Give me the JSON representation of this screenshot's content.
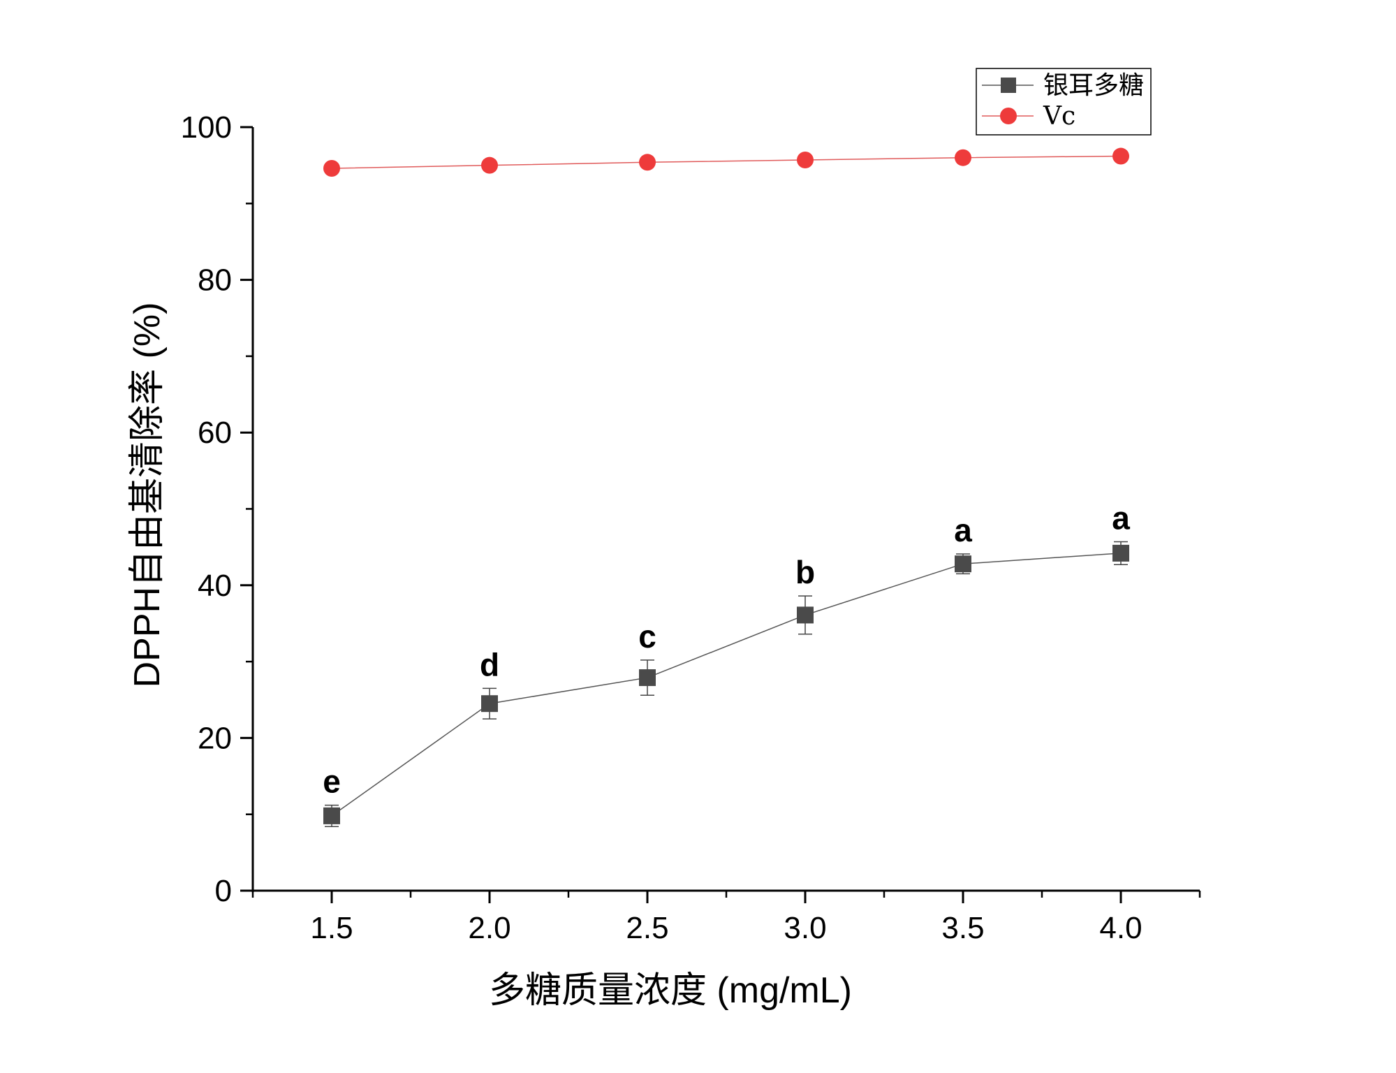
{
  "chart_data": {
    "type": "line",
    "xlabel": "多糖质量浓度 (mg/mL)",
    "ylabel": "DPPH自由基清除率 (%)",
    "xlim": [
      1.25,
      4.25
    ],
    "ylim": [
      0,
      100
    ],
    "x_ticks": [
      "1.5",
      "2.0",
      "2.5",
      "3.0",
      "3.5",
      "4.0"
    ],
    "y_ticks": [
      "0",
      "20",
      "40",
      "60",
      "80",
      "100"
    ],
    "grid": false,
    "legend_position": "top-right",
    "x": [
      1.5,
      2.0,
      2.5,
      3.0,
      3.5,
      4.0
    ],
    "series": [
      {
        "name": "银耳多糖",
        "marker": "square",
        "color": "#4a4a4a",
        "line_color": "#555555",
        "values": [
          9.8,
          24.5,
          27.9,
          36.1,
          42.8,
          44.2
        ],
        "errors": [
          1.4,
          2.0,
          2.3,
          2.5,
          1.3,
          1.5
        ],
        "annotations": [
          "e",
          "d",
          "c",
          "b",
          "a",
          "a"
        ]
      },
      {
        "name": "Vc",
        "marker": "circle",
        "color": "#ee3b3b",
        "line_color": "#e05a5a",
        "values": [
          94.6,
          95.0,
          95.4,
          95.7,
          96.0,
          96.2
        ]
      }
    ]
  }
}
